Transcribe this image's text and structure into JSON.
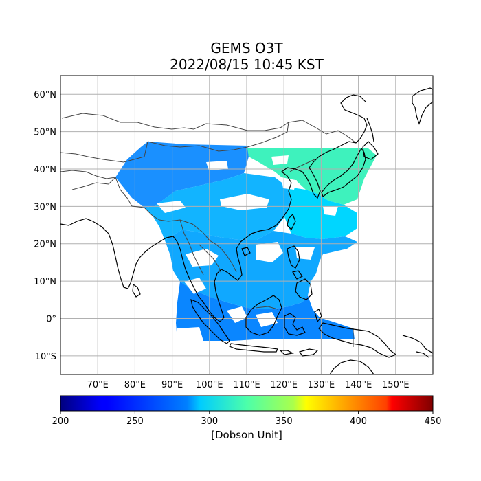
{
  "title": {
    "line1": "GEMS O3T",
    "line2": "2022/08/15 10:45 KST"
  },
  "map": {
    "lon_range": [
      60,
      160
    ],
    "lat_range": [
      -15,
      65
    ],
    "lon_ticks": [
      {
        "value": 70,
        "label": "70°E"
      },
      {
        "value": 80,
        "label": "80°E"
      },
      {
        "value": 90,
        "label": "90°E"
      },
      {
        "value": 100,
        "label": "100°E"
      },
      {
        "value": 110,
        "label": "110°E"
      },
      {
        "value": 120,
        "label": "120°E"
      },
      {
        "value": 130,
        "label": "130°E"
      },
      {
        "value": 140,
        "label": "140°E"
      },
      {
        "value": 150,
        "label": "150°E"
      }
    ],
    "lat_ticks": [
      {
        "value": 60,
        "label": "60°N"
      },
      {
        "value": 50,
        "label": "50°N"
      },
      {
        "value": 40,
        "label": "40°N"
      },
      {
        "value": 30,
        "label": "30°N"
      },
      {
        "value": 20,
        "label": "20°N"
      },
      {
        "value": 10,
        "label": "10°N"
      },
      {
        "value": 0,
        "label": "0°"
      },
      {
        "value": -10,
        "label": "10°S"
      }
    ],
    "grid": true,
    "gridline_color": "#b0b0b0",
    "coastline_color": "#000000",
    "border_color": "#444444"
  },
  "colorbar": {
    "colormap": "jet",
    "min": 200,
    "max": 450,
    "ticks": [
      {
        "value": 200,
        "label": "200"
      },
      {
        "value": 250,
        "label": "250"
      },
      {
        "value": 300,
        "label": "300"
      },
      {
        "value": 350,
        "label": "350"
      },
      {
        "value": 400,
        "label": "400"
      },
      {
        "value": 450,
        "label": "450"
      }
    ],
    "label": "[Dobson Unit]"
  },
  "data_regions": [
    {
      "name": "central-asia-band",
      "value": 278
    },
    {
      "name": "tibet-china",
      "value": 282
    },
    {
      "name": "northeast-china-korea-japan",
      "value": 300
    },
    {
      "name": "south-china-sea",
      "value": 272
    },
    {
      "name": "maritime-continent",
      "value": 268
    }
  ]
}
